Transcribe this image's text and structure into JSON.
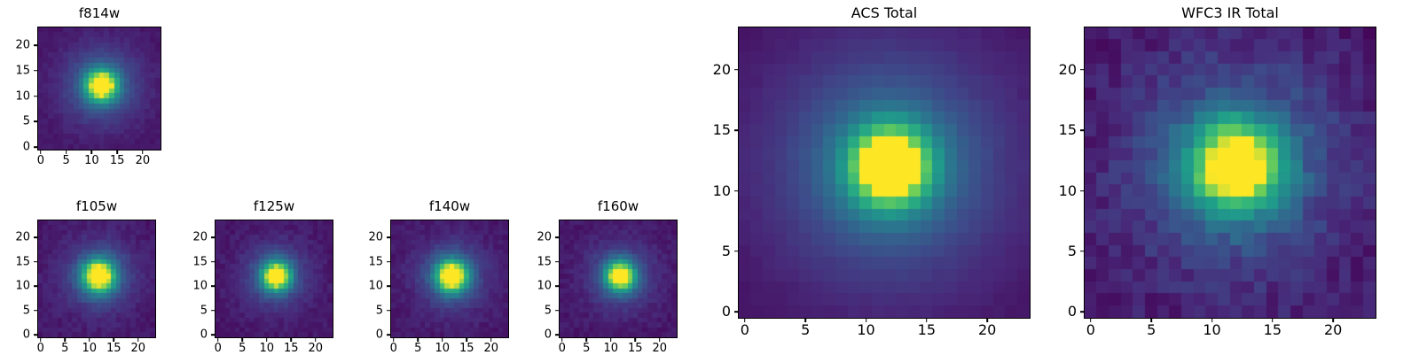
{
  "figure": {
    "background": "#ffffff",
    "description": "Grid of PSF cutout heatmaps in viridis colormap"
  },
  "colormap": {
    "name": "viridis",
    "anchors": [
      "#440154",
      "#482878",
      "#3e4989",
      "#31688e",
      "#26828e",
      "#1f9e89",
      "#35b779",
      "#6ece58",
      "#fde725"
    ]
  },
  "chart_data": [
    {
      "type": "heatmap",
      "title": "f814w",
      "grid_size": 24,
      "xlim": [
        0,
        24
      ],
      "ylim": [
        0,
        24
      ],
      "x_ticks": [
        0,
        5,
        10,
        15,
        20
      ],
      "y_ticks": [
        0,
        5,
        10,
        15,
        20
      ],
      "colormap": "viridis",
      "psf": {
        "center": [
          12,
          12
        ],
        "amp_core": 0.95,
        "sigma_core": 2.1,
        "amp_halo": 0.33,
        "sigma_halo": 5.2,
        "floor": 0.06,
        "noise": 0.05,
        "seed": 814
      }
    },
    {
      "type": "heatmap",
      "title": "f105w",
      "grid_size": 24,
      "xlim": [
        0,
        24
      ],
      "ylim": [
        0,
        24
      ],
      "x_ticks": [
        0,
        5,
        10,
        15,
        20
      ],
      "y_ticks": [
        0,
        5,
        10,
        15,
        20
      ],
      "colormap": "viridis",
      "psf": {
        "center": [
          12,
          12
        ],
        "amp_core": 0.95,
        "sigma_core": 2.3,
        "amp_halo": 0.3,
        "sigma_halo": 5.0,
        "floor": 0.06,
        "noise": 0.07,
        "seed": 105
      }
    },
    {
      "type": "heatmap",
      "title": "f125w",
      "grid_size": 24,
      "xlim": [
        0,
        24
      ],
      "ylim": [
        0,
        24
      ],
      "x_ticks": [
        0,
        5,
        10,
        15,
        20
      ],
      "y_ticks": [
        0,
        5,
        10,
        15,
        20
      ],
      "colormap": "viridis",
      "psf": {
        "center": [
          12,
          12
        ],
        "amp_core": 0.95,
        "sigma_core": 2.0,
        "amp_halo": 0.3,
        "sigma_halo": 4.5,
        "floor": 0.06,
        "noise": 0.07,
        "seed": 125
      }
    },
    {
      "type": "heatmap",
      "title": "f140w",
      "grid_size": 24,
      "xlim": [
        0,
        24
      ],
      "ylim": [
        0,
        24
      ],
      "x_ticks": [
        0,
        5,
        10,
        15,
        20
      ],
      "y_ticks": [
        0,
        5,
        10,
        15,
        20
      ],
      "colormap": "viridis",
      "psf": {
        "center": [
          12,
          12
        ],
        "amp_core": 0.97,
        "sigma_core": 2.2,
        "amp_halo": 0.32,
        "sigma_halo": 4.8,
        "floor": 0.06,
        "noise": 0.07,
        "seed": 140
      }
    },
    {
      "type": "heatmap",
      "title": "f160w",
      "grid_size": 24,
      "xlim": [
        0,
        24
      ],
      "ylim": [
        0,
        24
      ],
      "x_ticks": [
        0,
        5,
        10,
        15,
        20
      ],
      "y_ticks": [
        0,
        5,
        10,
        15,
        20
      ],
      "colormap": "viridis",
      "psf": {
        "center": [
          12,
          12
        ],
        "amp_core": 0.95,
        "sigma_core": 2.0,
        "amp_halo": 0.3,
        "sigma_halo": 4.6,
        "floor": 0.06,
        "noise": 0.07,
        "seed": 160
      }
    },
    {
      "type": "heatmap",
      "title": "ACS Total",
      "grid_size": 24,
      "xlim": [
        0,
        24
      ],
      "ylim": [
        0,
        24
      ],
      "x_ticks": [
        0,
        5,
        10,
        15,
        20
      ],
      "y_ticks": [
        0,
        5,
        10,
        15,
        20
      ],
      "colormap": "viridis",
      "psf": {
        "center": [
          12,
          12
        ],
        "amp_core": 0.97,
        "sigma_core": 2.3,
        "amp_halo": 0.4,
        "sigma_halo": 6.5,
        "floor": 0.05,
        "noise": 0.02,
        "seed": 7
      }
    },
    {
      "type": "heatmap",
      "title": "WFC3 IR Total",
      "grid_size": 24,
      "xlim": [
        0,
        24
      ],
      "ylim": [
        0,
        24
      ],
      "x_ticks": [
        0,
        5,
        10,
        15,
        20
      ],
      "y_ticks": [
        0,
        5,
        10,
        15,
        20
      ],
      "colormap": "viridis",
      "psf": {
        "center": [
          12,
          12
        ],
        "amp_core": 0.93,
        "sigma_core": 2.5,
        "amp_halo": 0.35,
        "sigma_halo": 6.0,
        "floor": 0.05,
        "noise": 0.13,
        "seed": 42
      }
    }
  ]
}
